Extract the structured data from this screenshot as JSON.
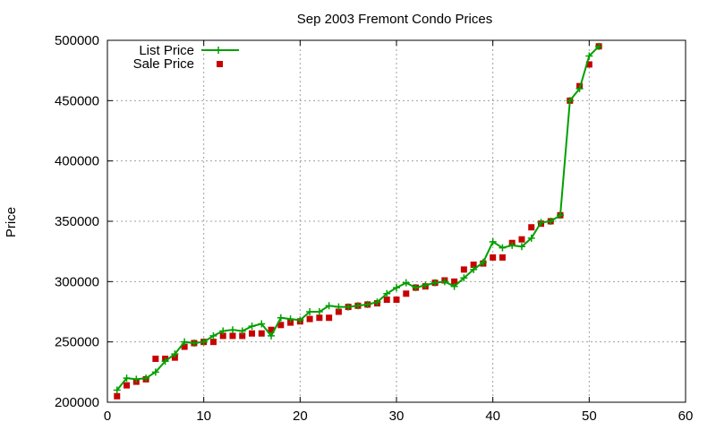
{
  "chart_data": {
    "type": "line",
    "title": "Sep 2003 Fremont Condo Prices",
    "xlabel": "",
    "ylabel": "Price",
    "xlim": [
      0,
      60
    ],
    "ylim": [
      200000,
      500000
    ],
    "x_ticks": [
      0,
      10,
      20,
      30,
      40,
      50,
      60
    ],
    "y_ticks": [
      200000,
      250000,
      300000,
      350000,
      400000,
      450000,
      500000
    ],
    "grid": true,
    "legend_position": "top-left",
    "series": [
      {
        "name": "List Price",
        "style": "line+cross",
        "color": "#00a000",
        "points": [
          [
            1,
            210000
          ],
          [
            2,
            220000
          ],
          [
            3,
            219000
          ],
          [
            4,
            220000
          ],
          [
            5,
            225000
          ],
          [
            6,
            234000
          ],
          [
            7,
            240000
          ],
          [
            8,
            250000
          ],
          [
            9,
            249000
          ],
          [
            10,
            250000
          ],
          [
            11,
            255000
          ],
          [
            12,
            259000
          ],
          [
            13,
            260000
          ],
          [
            14,
            259000
          ],
          [
            15,
            263000
          ],
          [
            16,
            265000
          ],
          [
            17,
            255000
          ],
          [
            18,
            270000
          ],
          [
            19,
            269000
          ],
          [
            20,
            268000
          ],
          [
            21,
            275000
          ],
          [
            22,
            275000
          ],
          [
            23,
            280000
          ],
          [
            24,
            279000
          ],
          [
            25,
            279000
          ],
          [
            26,
            280000
          ],
          [
            27,
            281000
          ],
          [
            28,
            283000
          ],
          [
            29,
            290000
          ],
          [
            30,
            295000
          ],
          [
            31,
            299000
          ],
          [
            32,
            295000
          ],
          [
            33,
            297000
          ],
          [
            34,
            299000
          ],
          [
            35,
            300000
          ],
          [
            36,
            296000
          ],
          [
            37,
            303000
          ],
          [
            38,
            310000
          ],
          [
            39,
            316000
          ],
          [
            40,
            333000
          ],
          [
            41,
            328000
          ],
          [
            42,
            330000
          ],
          [
            43,
            329000
          ],
          [
            44,
            336000
          ],
          [
            45,
            349000
          ],
          [
            46,
            350000
          ],
          [
            47,
            355000
          ],
          [
            48,
            450000
          ],
          [
            49,
            460000
          ],
          [
            50,
            487000
          ],
          [
            51,
            495000
          ]
        ]
      },
      {
        "name": "Sale Price",
        "style": "square",
        "color": "#c80000",
        "points": [
          [
            1,
            205000
          ],
          [
            2,
            214000
          ],
          [
            3,
            217000
          ],
          [
            4,
            219000
          ],
          [
            5,
            236000
          ],
          [
            6,
            236000
          ],
          [
            7,
            237000
          ],
          [
            8,
            246000
          ],
          [
            9,
            249000
          ],
          [
            10,
            250000
          ],
          [
            11,
            250000
          ],
          [
            12,
            255000
          ],
          [
            13,
            255000
          ],
          [
            14,
            255000
          ],
          [
            15,
            257000
          ],
          [
            16,
            257000
          ],
          [
            17,
            260000
          ],
          [
            18,
            264000
          ],
          [
            19,
            266000
          ],
          [
            20,
            267000
          ],
          [
            21,
            269000
          ],
          [
            22,
            270000
          ],
          [
            23,
            270000
          ],
          [
            24,
            275000
          ],
          [
            25,
            279000
          ],
          [
            26,
            280000
          ],
          [
            27,
            281000
          ],
          [
            28,
            282000
          ],
          [
            29,
            285000
          ],
          [
            30,
            285000
          ],
          [
            31,
            290000
          ],
          [
            32,
            295000
          ],
          [
            33,
            296000
          ],
          [
            34,
            299000
          ],
          [
            35,
            301000
          ],
          [
            36,
            300000
          ],
          [
            37,
            310000
          ],
          [
            38,
            314000
          ],
          [
            39,
            315000
          ],
          [
            40,
            320000
          ],
          [
            41,
            320000
          ],
          [
            42,
            332000
          ],
          [
            43,
            335000
          ],
          [
            44,
            345000
          ],
          [
            45,
            348000
          ],
          [
            46,
            350000
          ],
          [
            47,
            355000
          ],
          [
            48,
            450000
          ],
          [
            49,
            462000
          ],
          [
            50,
            480000
          ],
          [
            51,
            495000
          ]
        ]
      }
    ]
  }
}
